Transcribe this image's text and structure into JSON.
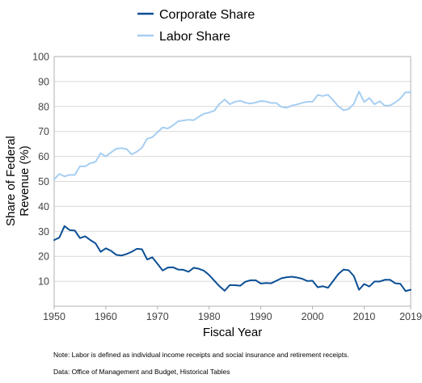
{
  "chart_data": {
    "type": "line",
    "title": "",
    "xlabel": "Fiscal Year",
    "ylabel_lines": [
      "Share of Federal",
      "Revenue (%)"
    ],
    "xlim": [
      1950,
      2019
    ],
    "ylim": [
      0,
      100
    ],
    "x_ticks": [
      1950,
      1960,
      1970,
      1980,
      1990,
      2000,
      2010,
      2019
    ],
    "y_ticks": [
      10,
      20,
      30,
      40,
      50,
      60,
      70,
      80,
      90,
      100
    ],
    "grid": true,
    "legend_position": "top",
    "x": [
      1950,
      1951,
      1952,
      1953,
      1954,
      1955,
      1956,
      1957,
      1958,
      1959,
      1960,
      1961,
      1962,
      1963,
      1964,
      1965,
      1966,
      1967,
      1968,
      1969,
      1970,
      1971,
      1972,
      1973,
      1974,
      1975,
      1976,
      1977,
      1978,
      1979,
      1980,
      1981,
      1982,
      1983,
      1984,
      1985,
      1986,
      1987,
      1988,
      1989,
      1990,
      1991,
      1992,
      1993,
      1994,
      1995,
      1996,
      1997,
      1998,
      1999,
      2000,
      2001,
      2002,
      2003,
      2004,
      2005,
      2006,
      2007,
      2008,
      2009,
      2010,
      2011,
      2012,
      2013,
      2014,
      2015,
      2016,
      2017,
      2018,
      2019
    ],
    "series": [
      {
        "name": "Corporate Share",
        "color": "#0b4f95",
        "values": [
          26.5,
          27.5,
          32.1,
          30.5,
          30.3,
          27.3,
          28.0,
          26.5,
          25.2,
          21.8,
          23.2,
          22.2,
          20.6,
          20.3,
          20.9,
          21.8,
          23.0,
          22.8,
          18.7,
          19.6,
          17.0,
          14.3,
          15.5,
          15.6,
          14.7,
          14.6,
          13.8,
          15.4,
          15.0,
          14.2,
          12.5,
          10.2,
          8.0,
          6.2,
          8.5,
          8.4,
          8.2,
          9.8,
          10.4,
          10.4,
          9.1,
          9.3,
          9.2,
          10.2,
          11.2,
          11.6,
          11.8,
          11.5,
          11.0,
          10.1,
          10.2,
          7.6,
          8.0,
          7.4,
          10.1,
          12.9,
          14.7,
          14.4,
          12.1,
          6.6,
          8.9,
          7.9,
          9.9,
          9.9,
          10.6,
          10.6,
          9.2,
          9.0,
          6.1,
          6.6
        ]
      },
      {
        "name": "Labor Share",
        "color": "#a6cef2",
        "values": [
          50.8,
          53.0,
          52.0,
          52.6,
          52.6,
          56.1,
          56.0,
          57.3,
          57.8,
          61.3,
          60.0,
          61.6,
          63.1,
          63.3,
          63.0,
          60.8,
          61.9,
          63.5,
          67.1,
          67.7,
          69.7,
          71.6,
          71.2,
          72.4,
          74.1,
          74.4,
          74.7,
          74.5,
          75.9,
          77.1,
          77.6,
          78.3,
          81.1,
          82.8,
          80.9,
          81.9,
          82.3,
          81.5,
          81.2,
          81.6,
          82.2,
          82.0,
          81.4,
          81.4,
          79.8,
          79.5,
          80.4,
          80.8,
          81.5,
          81.9,
          81.9,
          84.6,
          84.2,
          84.7,
          82.5,
          80.1,
          78.5,
          79.0,
          81.1,
          86.0,
          81.8,
          83.4,
          80.9,
          82.1,
          80.3,
          80.4,
          81.6,
          83.2,
          85.7,
          85.7
        ]
      }
    ],
    "notes": [
      "Note: Labor is defined as individual income receipts and social insurance and retirement receipts.",
      "Data: Office of Management and Budget, Historical Tables"
    ]
  }
}
